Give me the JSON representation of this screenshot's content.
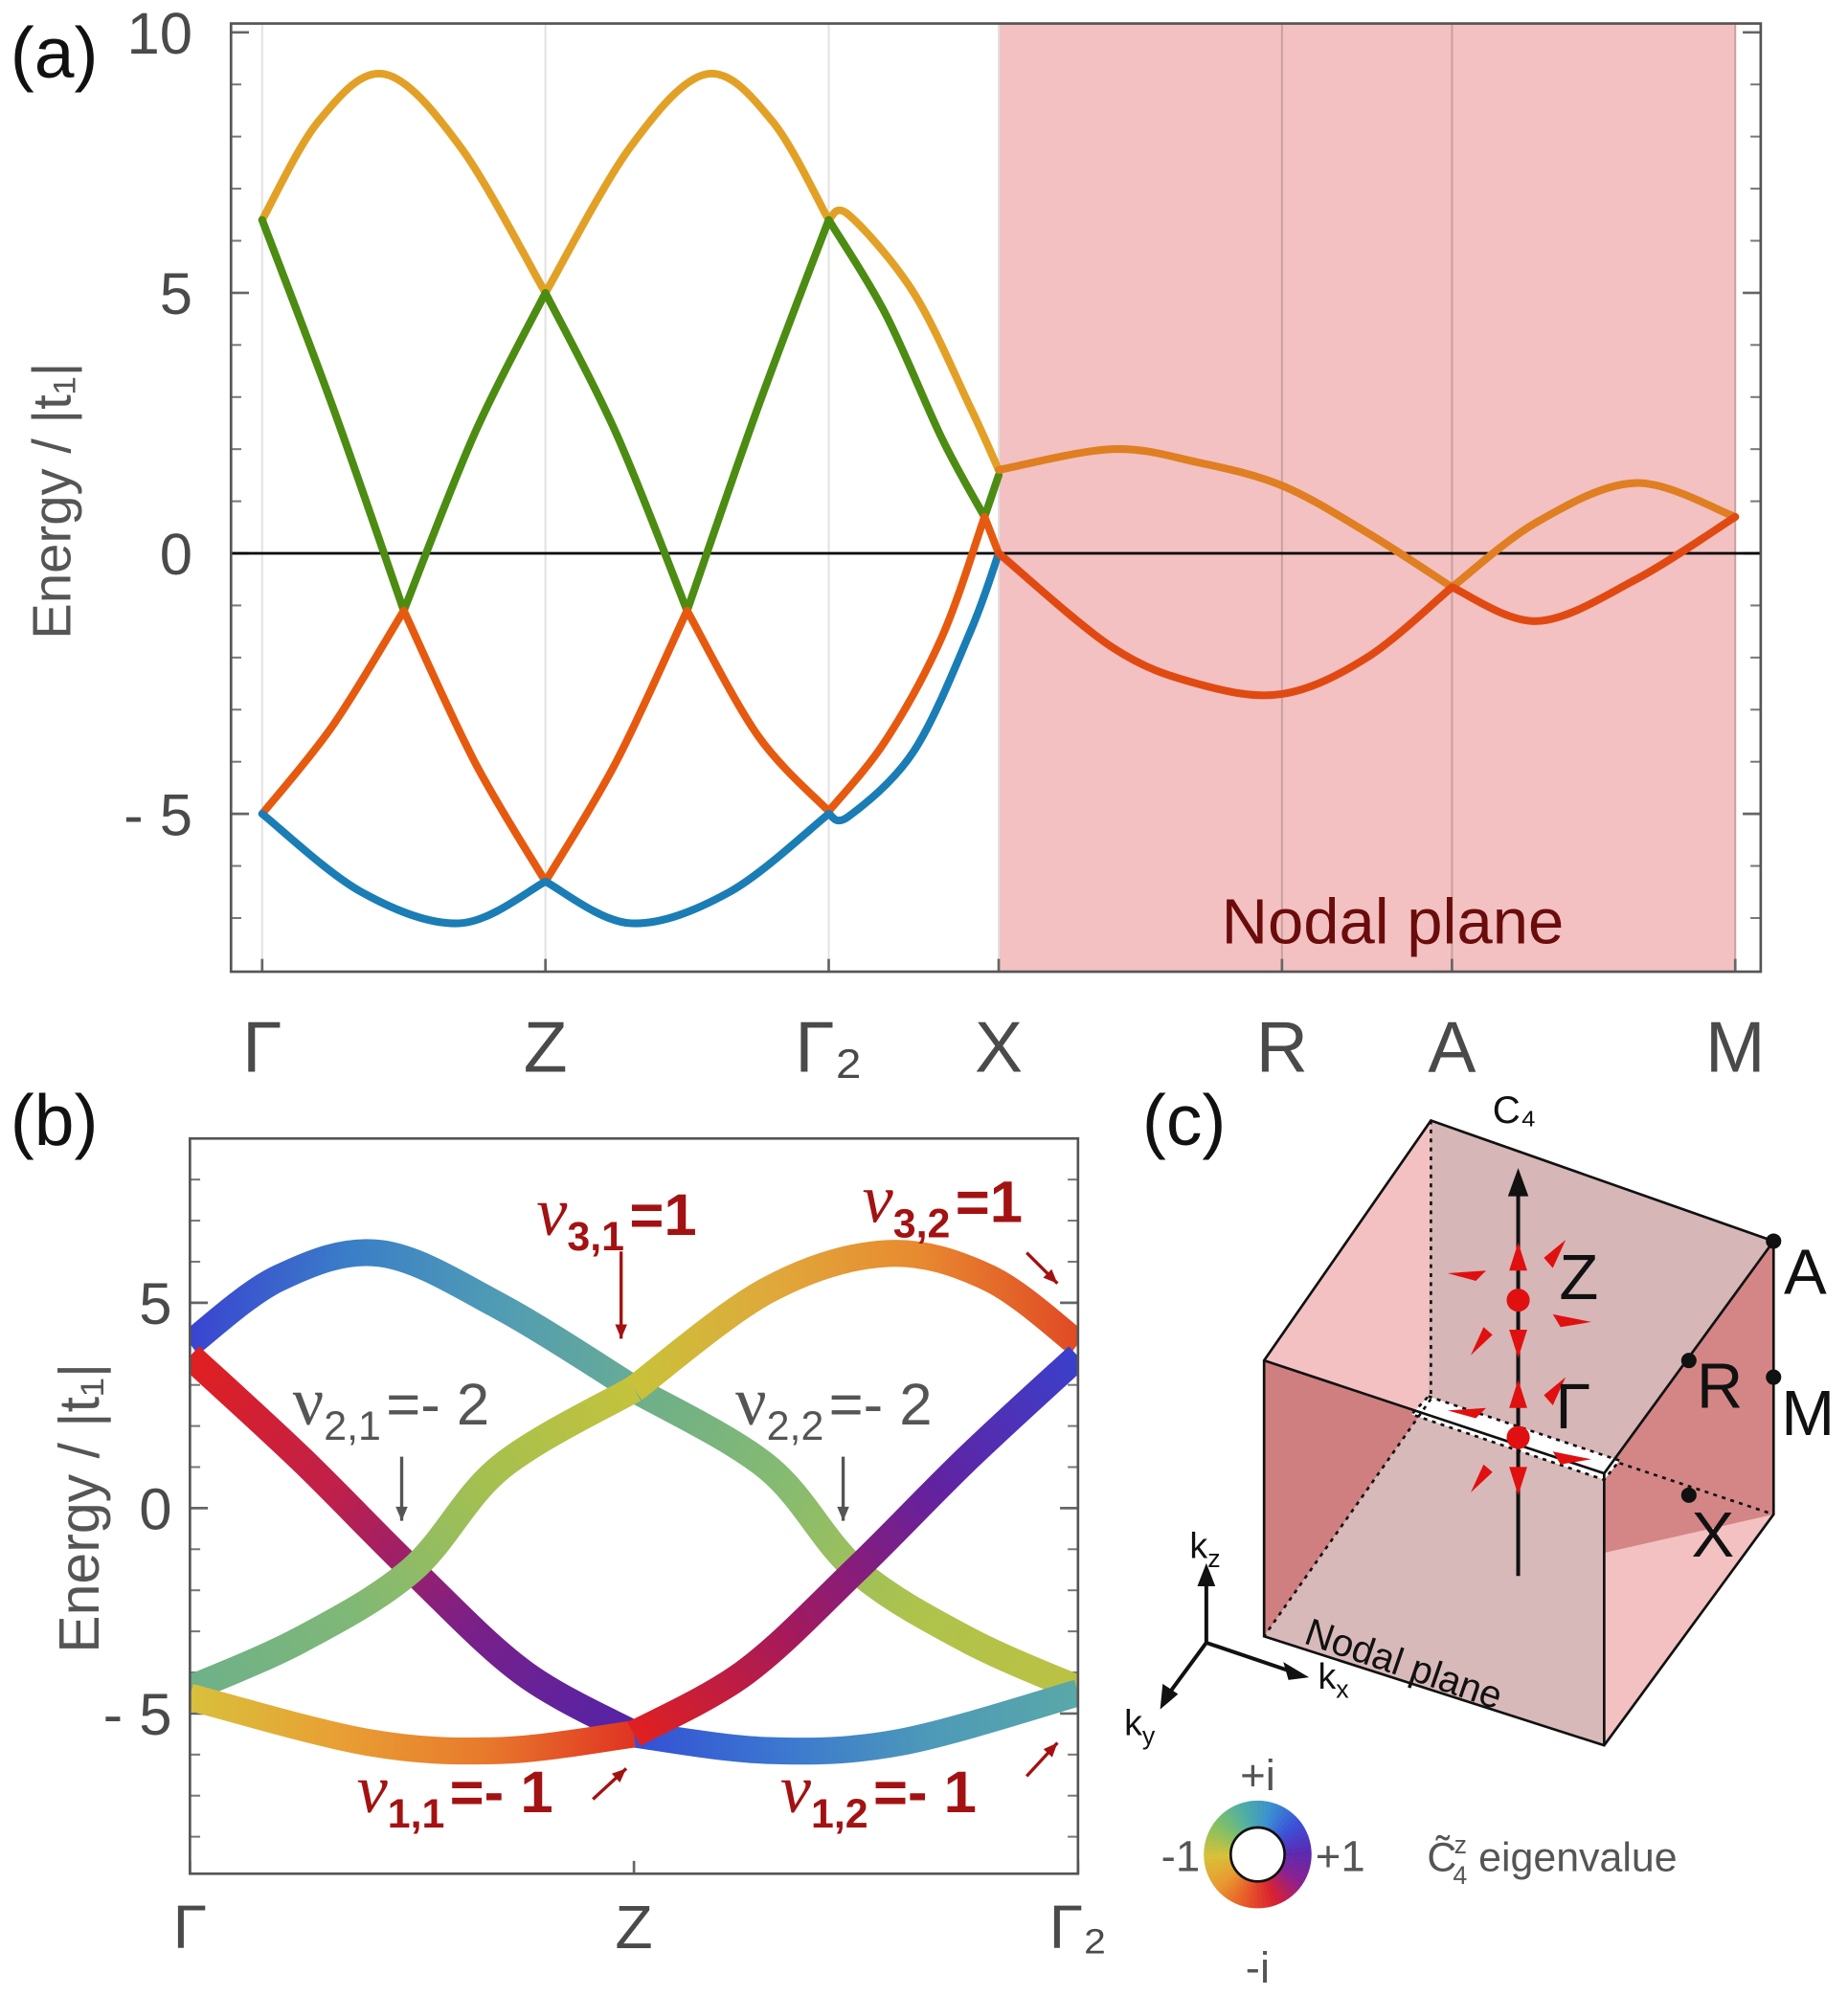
{
  "chart_data": [
    {
      "type": "line",
      "panel_label": "(a)",
      "ylabel": "Energy  / |t₁|",
      "xlim": [
        -0.11,
        5.29
      ],
      "ylim": [
        -8.03,
        10.17
      ],
      "yticks": [
        10,
        5,
        0,
        {
          "value": -5,
          "label": "- 5"
        }
      ],
      "yminorticks": [
        -7,
        -6,
        -4,
        -3,
        -2,
        -1,
        1,
        2,
        3,
        4,
        6,
        7,
        8,
        9
      ],
      "xticks": [
        {
          "value": 0,
          "label": "Γ"
        },
        {
          "value": 1,
          "label": "Z"
        },
        {
          "value": 2,
          "label": "Γ₂"
        },
        {
          "value": 2.6,
          "label": "X"
        },
        {
          "value": 3.6,
          "label": "R"
        },
        {
          "value": 4.2,
          "label": "A"
        },
        {
          "value": 5.2,
          "label": "M"
        }
      ],
      "grid": true,
      "zero_line": true,
      "region": {
        "from": 2.6,
        "to": 5.2,
        "label": "Nodal plane",
        "color": "#f3c1c1",
        "label_color": "#6b0c0c"
      },
      "series": [
        {
          "color": "#e2a126",
          "x": [
            0,
            0.2,
            0.43,
            0.7,
            1
          ],
          "values": [
            6.4,
            8.3,
            9.2,
            7.8,
            5.0
          ]
        },
        {
          "color": "#e2a126",
          "x": [
            1,
            1.3,
            1.57,
            1.8,
            2
          ],
          "values": [
            5.0,
            7.8,
            9.2,
            8.3,
            6.4
          ]
        },
        {
          "color": "#e2a126",
          "x": [
            2,
            2.07,
            2.3,
            2.5,
            2.6
          ],
          "values": [
            6.4,
            6.5,
            5.0,
            2.8,
            1.6
          ]
        },
        {
          "color": "#4c8c12",
          "x": [
            0,
            0.25,
            0.5
          ],
          "values": [
            6.4,
            2.8,
            -1.1
          ]
        },
        {
          "color": "#4c8c12",
          "x": [
            0.5,
            0.75,
            1
          ],
          "values": [
            -1.1,
            2.3,
            5.0
          ]
        },
        {
          "color": "#4c8c12",
          "x": [
            1,
            1.25,
            1.5
          ],
          "values": [
            5.0,
            2.3,
            -1.1
          ]
        },
        {
          "color": "#4c8c12",
          "x": [
            1.5,
            1.75,
            2
          ],
          "values": [
            -1.1,
            2.8,
            6.4
          ]
        },
        {
          "color": "#4c8c12",
          "x": [
            2,
            2.2,
            2.4,
            2.55
          ],
          "values": [
            6.4,
            4.6,
            2.2,
            0.7
          ]
        },
        {
          "color": "#4c8c12",
          "x": [
            2.55,
            2.6
          ],
          "values": [
            0.7,
            1.5
          ]
        },
        {
          "color": "#e65a10",
          "x": [
            0,
            0.25,
            0.5
          ],
          "values": [
            -5.0,
            -3.3,
            -1.1
          ]
        },
        {
          "color": "#e65a10",
          "x": [
            0.5,
            0.75,
            1
          ],
          "values": [
            -1.1,
            -4.0,
            -6.3
          ]
        },
        {
          "color": "#e65a10",
          "x": [
            1,
            1.25,
            1.5
          ],
          "values": [
            -6.3,
            -4.0,
            -1.1
          ]
        },
        {
          "color": "#e65a10",
          "x": [
            1.5,
            1.75,
            2
          ],
          "values": [
            -1.1,
            -3.5,
            -4.95
          ]
        },
        {
          "color": "#e65a10",
          "x": [
            2,
            2.2,
            2.4,
            2.55
          ],
          "values": [
            -4.95,
            -3.6,
            -1.6,
            0.7
          ]
        },
        {
          "color": "#e65a10",
          "x": [
            2.55,
            2.6
          ],
          "values": [
            0.7,
            0
          ]
        },
        {
          "color": "#1a7db5",
          "x": [
            0,
            0.35,
            0.7,
            1
          ],
          "values": [
            -5.0,
            -6.5,
            -7.1,
            -6.3
          ]
        },
        {
          "color": "#1a7db5",
          "x": [
            1,
            1.3,
            1.65,
            2
          ],
          "values": [
            -6.3,
            -7.1,
            -6.5,
            -5.0
          ]
        },
        {
          "color": "#1a7db5",
          "x": [
            2,
            2.07,
            2.3,
            2.5,
            2.6
          ],
          "values": [
            -5.0,
            -5.05,
            -3.8,
            -1.5,
            0
          ]
        },
        {
          "color": "#df7f22",
          "x": [
            2.6,
            3.0,
            3.3,
            3.6,
            3.9,
            4.2
          ],
          "values": [
            1.6,
            2.0,
            1.75,
            1.3,
            0.4,
            -0.65
          ]
        },
        {
          "color": "#df7f22",
          "x": [
            4.2,
            4.5,
            4.85,
            5.2
          ],
          "values": [
            -0.65,
            0.6,
            1.35,
            0.7
          ]
        },
        {
          "color": "#e04a12",
          "x": [
            2.6,
            3.0,
            3.3,
            3.6,
            3.9,
            4.2
          ],
          "values": [
            0,
            -1.8,
            -2.5,
            -2.7,
            -2.0,
            -0.65
          ]
        },
        {
          "color": "#e04a12",
          "x": [
            4.2,
            4.5,
            4.85,
            5.2
          ],
          "values": [
            -0.65,
            -1.3,
            -0.5,
            0.7
          ]
        }
      ]
    },
    {
      "type": "gradient-line",
      "panel_label": "(b)",
      "ylabel": "Energy / |t₁|",
      "xlim": [
        0,
        2
      ],
      "ylim": [
        -8.9,
        9.0
      ],
      "yticks": [
        5,
        0,
        {
          "value": -5,
          "label": "- 5"
        }
      ],
      "yminorticks": [
        -8,
        -7,
        -6,
        -4,
        -3,
        -2,
        -1,
        1,
        2,
        3,
        4,
        6,
        7,
        8
      ],
      "xticks": [
        {
          "value": 0,
          "label": "Γ"
        },
        {
          "value": 1,
          "label": "Z"
        },
        {
          "value": 2,
          "label": "Γ₂"
        }
      ],
      "series": [
        {
          "colors": [
            "#3a44d0",
            "#3a7ec8",
            "#4f9bb5",
            "#68ab96"
          ],
          "x": [
            0,
            0.2,
            0.43,
            0.7,
            1
          ],
          "values": [
            4.0,
            5.6,
            6.2,
            4.9,
            2.9
          ]
        },
        {
          "colors": [
            "#6cae8c",
            "#86bb70",
            "#aec34c",
            "#bcc142"
          ],
          "x": [
            1,
            1.3,
            1.5,
            1.75,
            2
          ],
          "values": [
            2.9,
            1.0,
            -1.5,
            -3.2,
            -4.4
          ]
        },
        {
          "colors": [
            "#e02020",
            "#c0204a",
            "#7a2088",
            "#5224a8"
          ],
          "x": [
            0,
            0.25,
            0.5,
            0.75,
            1
          ],
          "values": [
            3.7,
            1.2,
            -1.5,
            -4.0,
            -5.5
          ]
        },
        {
          "colors": [
            "#3450d4",
            "#3c78d0",
            "#4d9ab8",
            "#5aa8a8"
          ],
          "x": [
            1,
            1.3,
            1.6,
            2
          ],
          "values": [
            -5.5,
            -5.9,
            -5.7,
            -4.5
          ]
        },
        {
          "colors": [
            "#6db08a",
            "#80b876",
            "#a4c050",
            "#c4c23c"
          ],
          "x": [
            0,
            0.25,
            0.5,
            0.7,
            1
          ],
          "values": [
            -4.4,
            -3.2,
            -1.5,
            1.0,
            2.9
          ]
        },
        {
          "colors": [
            "#c8c23a",
            "#e0a83a",
            "#e88a30",
            "#e04a24"
          ],
          "x": [
            1,
            1.3,
            1.57,
            1.8,
            2
          ],
          "values": [
            2.9,
            5.3,
            6.2,
            5.6,
            4.0
          ]
        },
        {
          "colors": [
            "#d8c03c",
            "#e8a034",
            "#e87a2c",
            "#e03422"
          ],
          "x": [
            0,
            0.4,
            0.7,
            1
          ],
          "values": [
            -4.6,
            -5.7,
            -5.9,
            -5.5
          ]
        },
        {
          "colors": [
            "#e02020",
            "#a01a60",
            "#6222a0",
            "#3a40cc"
          ],
          "x": [
            1,
            1.25,
            1.5,
            1.75,
            2
          ],
          "values": [
            -5.5,
            -4.0,
            -1.5,
            1.2,
            3.7
          ]
        }
      ],
      "annotations": [
        {
          "text": "ν",
          "sub": "3,1",
          "suffix": "=1",
          "color": "#a31212"
        },
        {
          "text": "ν",
          "sub": "3,2",
          "suffix": "=1",
          "color": "#a31212"
        },
        {
          "text": "ν",
          "sub": "2,1",
          "suffix": "=- 2",
          "color": "#555555"
        },
        {
          "text": "ν",
          "sub": "2,2",
          "suffix": "=- 2",
          "color": "#555555"
        },
        {
          "text": "ν",
          "sub": "1,1",
          "suffix": "=- 1",
          "color": "#a31212"
        },
        {
          "text": "ν",
          "sub": "1,2",
          "suffix": "=- 1",
          "color": "#a31212"
        }
      ]
    }
  ],
  "diagram": {
    "panel_label": "(c)",
    "axis": "C₄",
    "points": [
      "Z",
      "Γ",
      "A",
      "R",
      "M",
      "X"
    ],
    "k_axes": [
      {
        "main": "k",
        "sub": "z"
      },
      {
        "main": "k",
        "sub": "x"
      },
      {
        "main": "k",
        "sub": "y"
      }
    ],
    "plane_label": "Nodal plane",
    "wheel": {
      "labels": [
        "+i",
        "-i",
        "-1",
        "+1"
      ],
      "title": {
        "main": "C̃",
        "sub": "4",
        "sup": "z",
        "tail": " eigenvalue"
      },
      "colors": [
        "#5a2ab0",
        "#3a50d8",
        "#3a90d0",
        "#50b0a0",
        "#88c060",
        "#d8c038",
        "#e89a30",
        "#e85a28",
        "#d82030",
        "#8a2090",
        "#5a2ab0"
      ]
    }
  }
}
